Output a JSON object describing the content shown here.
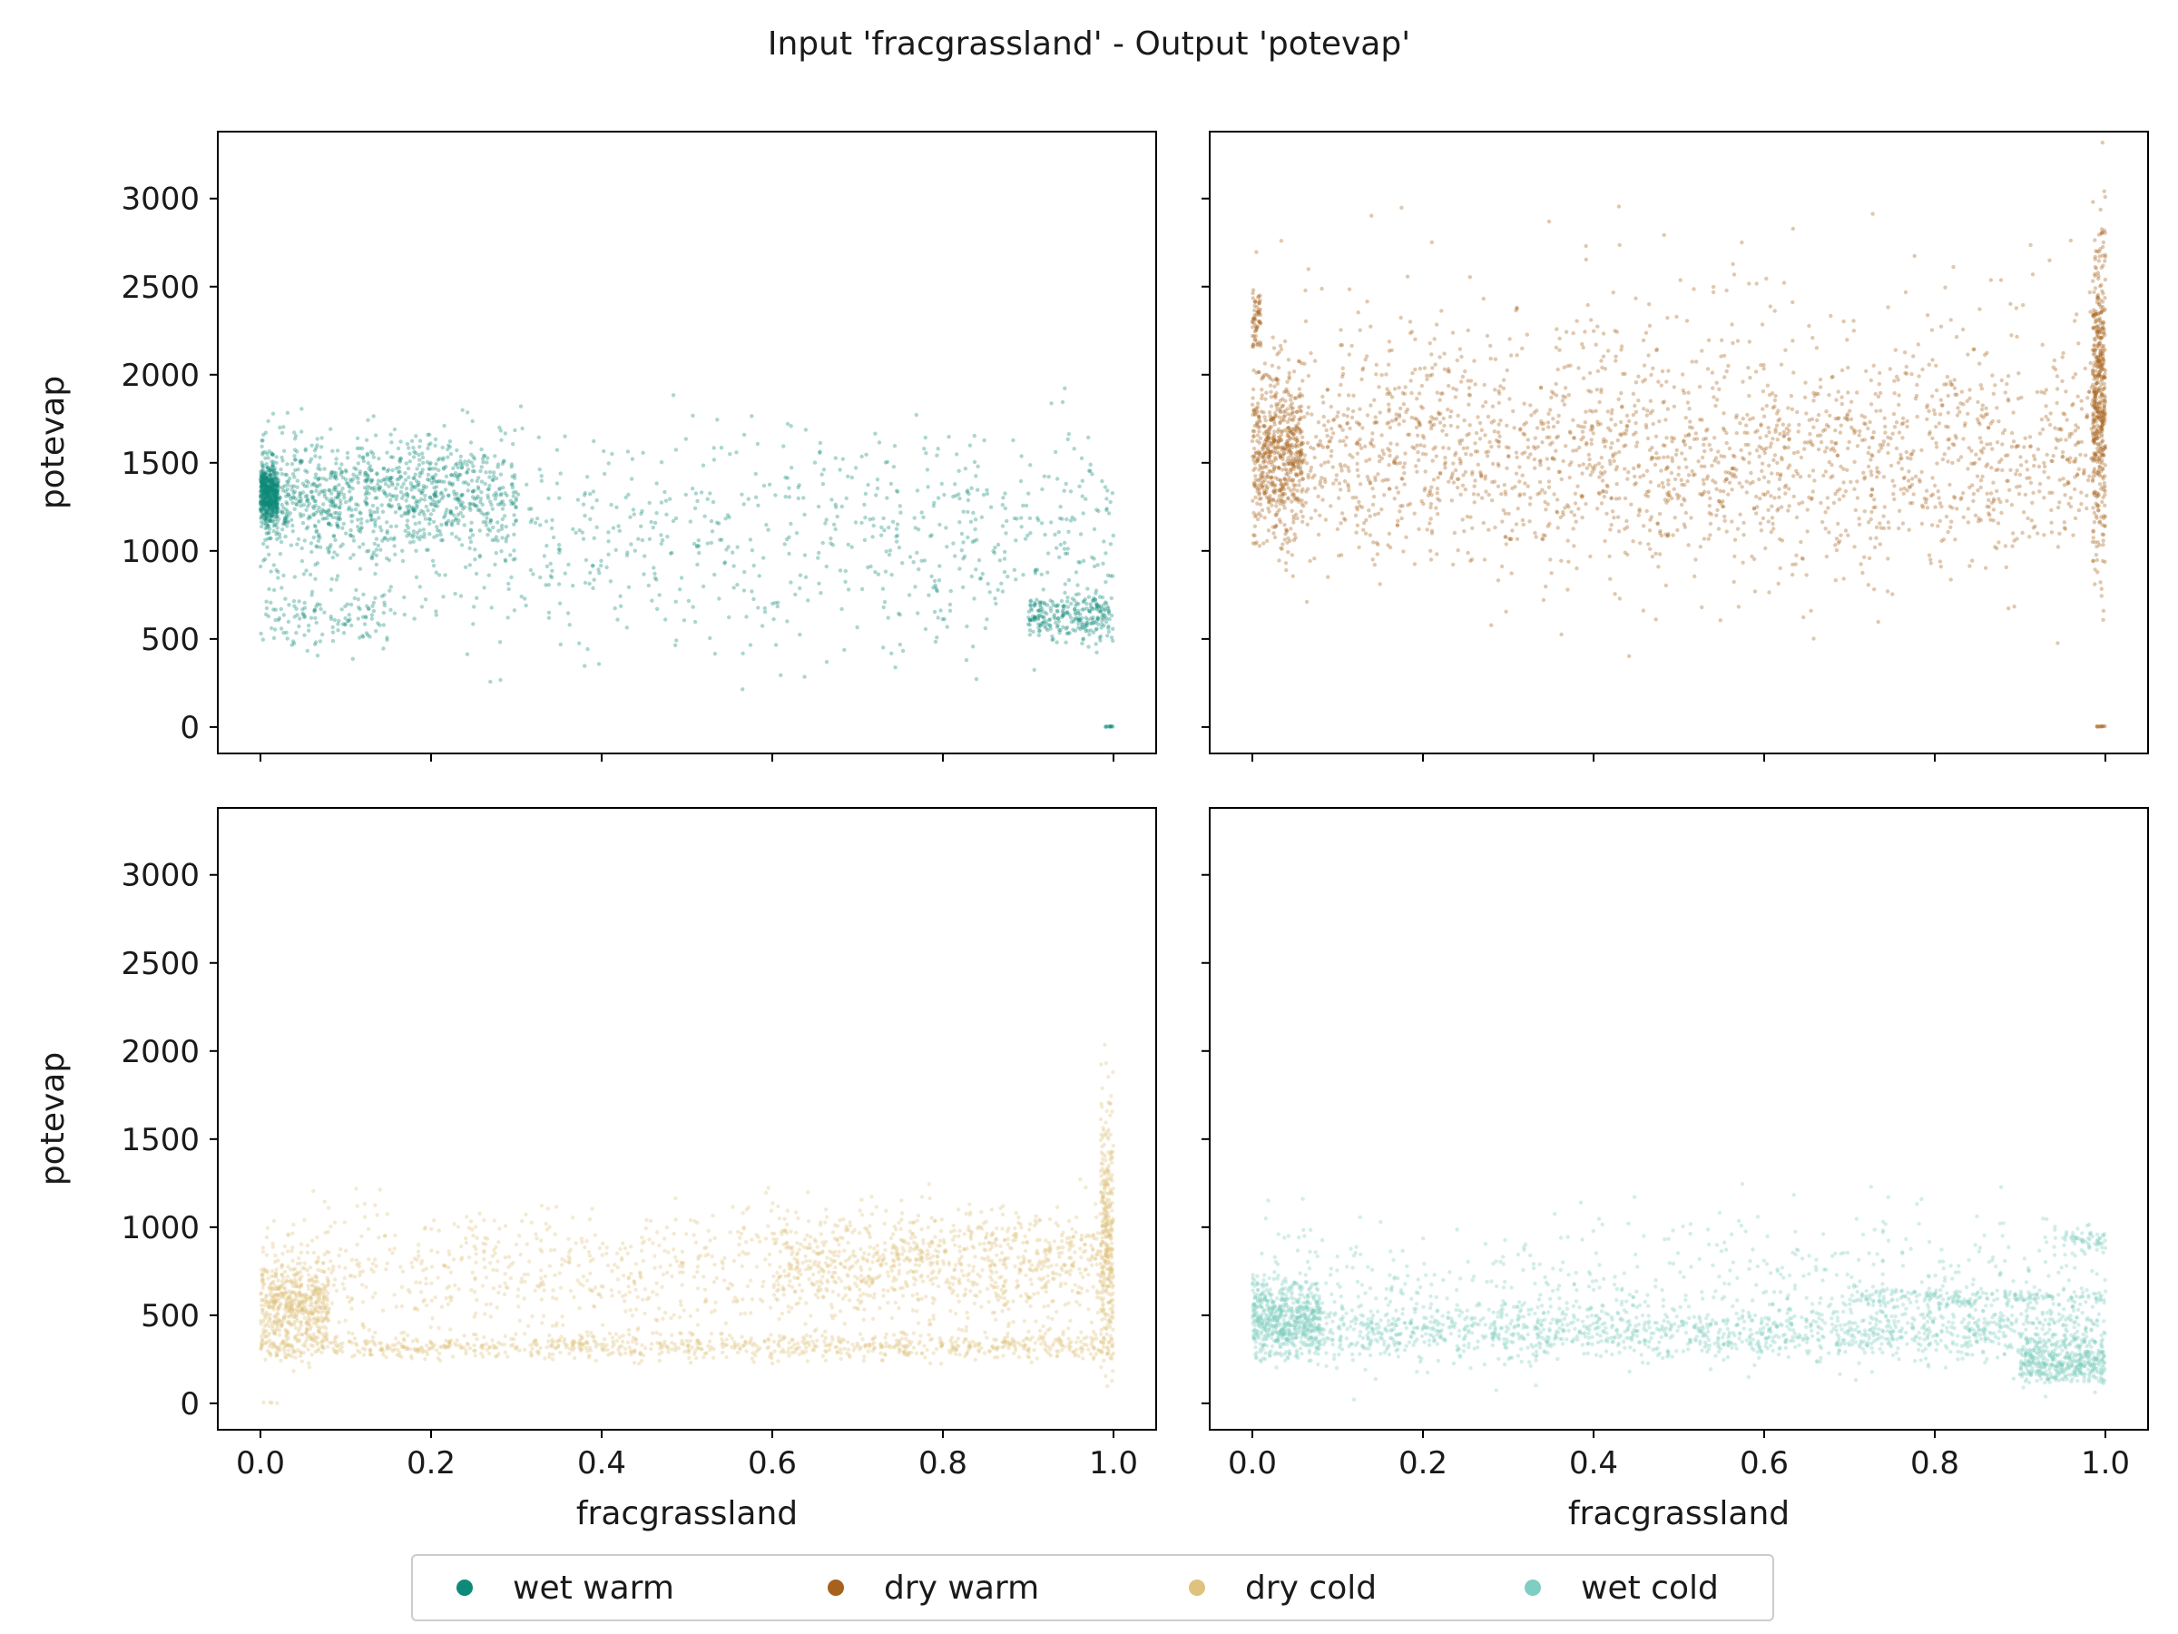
{
  "figure": {
    "title": "Input 'fracgrassland' - Output 'potevap'"
  },
  "legend": {
    "entries": [
      {
        "label": "wet warm",
        "color": "#0f8a78"
      },
      {
        "label": "dry warm",
        "color": "#a6611a"
      },
      {
        "label": "dry cold",
        "color": "#dfc27d"
      },
      {
        "label": "wet cold",
        "color": "#80cdc1"
      }
    ]
  },
  "chart_data": [
    {
      "type": "scatter",
      "panel": "top-left",
      "series": [
        {
          "name": "wet warm",
          "color": "#0f8a78"
        }
      ],
      "xlabel": "",
      "ylabel": "potevap",
      "xlim": [
        -0.05,
        1.05
      ],
      "ylim": [
        -150,
        3380
      ],
      "xticks": [
        "0.0",
        "0.2",
        "0.4",
        "0.6",
        "0.8",
        "1.0"
      ],
      "yticks": [
        "0",
        "500",
        "1000",
        "1500",
        "2000",
        "2500",
        "3000"
      ],
      "show_xtick_labels": false,
      "show_ytick_labels": true,
      "grid": false,
      "clusters": [
        {
          "x": [
            0.0,
            0.02
          ],
          "y": [
            1150,
            1500
          ],
          "n": 500
        },
        {
          "x": [
            0.0,
            0.3
          ],
          "y": [
            1000,
            1650
          ],
          "n": 900
        },
        {
          "x": [
            0.0,
            1.0
          ],
          "y": [
            500,
            1700
          ],
          "n": 900
        },
        {
          "x": [
            0.0,
            0.15
          ],
          "y": [
            450,
            800
          ],
          "n": 120
        },
        {
          "x": [
            0.9,
            1.0
          ],
          "y": [
            500,
            750
          ],
          "n": 250
        },
        {
          "x": [
            0.99,
            1.0
          ],
          "y": [
            0,
            5
          ],
          "n": 10
        }
      ]
    },
    {
      "type": "scatter",
      "panel": "top-right",
      "series": [
        {
          "name": "dry warm",
          "color": "#a6611a"
        }
      ],
      "xlabel": "",
      "ylabel": "",
      "xlim": [
        -0.05,
        1.05
      ],
      "ylim": [
        -150,
        3380
      ],
      "xticks": [
        "0.0",
        "0.2",
        "0.4",
        "0.6",
        "0.8",
        "1.0"
      ],
      "yticks": [
        "0",
        "500",
        "1000",
        "1500",
        "2000",
        "2500",
        "3000"
      ],
      "show_xtick_labels": false,
      "show_ytick_labels": false,
      "grid": false,
      "clusters": [
        {
          "x": [
            0.0,
            0.06
          ],
          "y": [
            1100,
            2000
          ],
          "n": 500
        },
        {
          "x": [
            0.0,
            0.01
          ],
          "y": [
            2150,
            2450
          ],
          "n": 60
        },
        {
          "x": [
            0.0,
            1.0
          ],
          "y": [
            950,
            2100
          ],
          "n": 1500
        },
        {
          "x": [
            0.0,
            1.0
          ],
          "y": [
            750,
            2600
          ],
          "n": 800
        },
        {
          "x": [
            0.985,
            1.0
          ],
          "y": [
            1100,
            2700
          ],
          "n": 400
        },
        {
          "x": [
            0.99,
            1.0
          ],
          "y": [
            600,
            3200
          ],
          "n": 60
        },
        {
          "x": [
            0.99,
            1.0
          ],
          "y": [
            0,
            5
          ],
          "n": 10
        }
      ]
    },
    {
      "type": "scatter",
      "panel": "bottom-left",
      "series": [
        {
          "name": "dry cold",
          "color": "#dfc27d"
        }
      ],
      "xlabel": "fracgrassland",
      "ylabel": "potevap",
      "xlim": [
        -0.05,
        1.05
      ],
      "ylim": [
        -150,
        3380
      ],
      "xticks": [
        "0.0",
        "0.2",
        "0.4",
        "0.6",
        "0.8",
        "1.0"
      ],
      "yticks": [
        "0",
        "500",
        "1000",
        "1500",
        "2000",
        "2500",
        "3000"
      ],
      "show_xtick_labels": true,
      "show_ytick_labels": true,
      "grid": false,
      "clusters": [
        {
          "x": [
            0.0,
            0.08
          ],
          "y": [
            300,
            800
          ],
          "n": 500
        },
        {
          "x": [
            0.0,
            1.0
          ],
          "y": [
            250,
            400
          ],
          "n": 900
        },
        {
          "x": [
            0.0,
            1.0
          ],
          "y": [
            350,
            1100
          ],
          "n": 1000
        },
        {
          "x": [
            0.6,
            1.0
          ],
          "y": [
            550,
            1100
          ],
          "n": 600
        },
        {
          "x": [
            0.985,
            1.0
          ],
          "y": [
            250,
            1700
          ],
          "n": 300
        },
        {
          "x": [
            0.0,
            0.02
          ],
          "y": [
            0,
            5
          ],
          "n": 4
        }
      ]
    },
    {
      "type": "scatter",
      "panel": "bottom-right",
      "series": [
        {
          "name": "wet cold",
          "color": "#80cdc1"
        }
      ],
      "xlabel": "fracgrassland",
      "ylabel": "",
      "xlim": [
        -0.05,
        1.05
      ],
      "ylim": [
        -150,
        3380
      ],
      "xticks": [
        "0.0",
        "0.2",
        "0.4",
        "0.6",
        "0.8",
        "1.0"
      ],
      "yticks": [
        "0",
        "500",
        "1000",
        "1500",
        "2000",
        "2500",
        "3000"
      ],
      "show_xtick_labels": true,
      "show_ytick_labels": false,
      "grid": false,
      "clusters": [
        {
          "x": [
            0.0,
            0.08
          ],
          "y": [
            280,
            700
          ],
          "n": 500
        },
        {
          "x": [
            0.0,
            1.0
          ],
          "y": [
            250,
            550
          ],
          "n": 1400
        },
        {
          "x": [
            0.0,
            1.0
          ],
          "y": [
            200,
            1050
          ],
          "n": 700
        },
        {
          "x": [
            0.7,
            1.0
          ],
          "y": [
            550,
            650
          ],
          "n": 200
        },
        {
          "x": [
            0.9,
            1.0
          ],
          "y": [
            100,
            350
          ],
          "n": 400
        },
        {
          "x": [
            0.95,
            1.0
          ],
          "y": [
            850,
            1000
          ],
          "n": 60
        }
      ]
    }
  ]
}
